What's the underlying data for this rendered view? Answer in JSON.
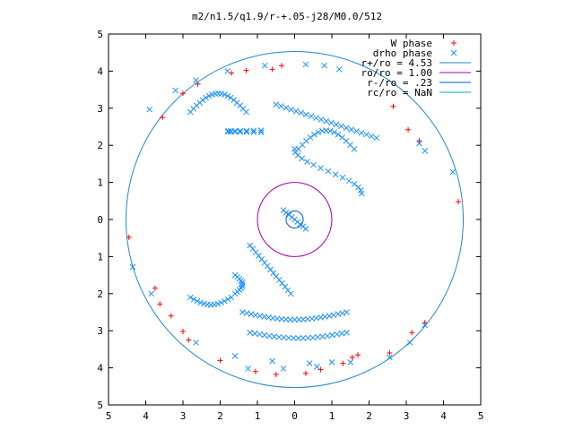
{
  "chart_data": {
    "type": "scatter",
    "title": "m2/n1.5/q1.9/r-+.05-j28/M0.0/512",
    "xlim": [
      -5,
      5
    ],
    "ylim": [
      -5,
      5
    ],
    "x_ticks": [
      -5,
      -4,
      -3,
      -2,
      -1,
      0,
      1,
      2,
      3,
      4,
      5
    ],
    "y_ticks": [
      -5,
      -4,
      -3,
      -2,
      -1,
      0,
      1,
      2,
      3,
      4,
      5
    ],
    "x_tick_labels": [
      "5",
      "4",
      "3",
      "2",
      "1",
      "0",
      "1",
      "2",
      "3",
      "4",
      "5"
    ],
    "y_tick_labels": [
      "5",
      "4",
      "3",
      "2",
      "1",
      "0",
      "1",
      "2",
      "3",
      "4",
      "5"
    ],
    "grid": false,
    "legend_position": "top-right",
    "series": [
      {
        "name": "W phase",
        "marker": "plus",
        "color": "#ff0000",
        "points": [
          [
            -4.45,
            -0.48
          ],
          [
            -3.75,
            -1.85
          ],
          [
            -3.62,
            -2.28
          ],
          [
            -3.32,
            -2.6
          ],
          [
            -3.0,
            -3.02
          ],
          [
            -2.85,
            -3.25
          ],
          [
            -2.0,
            -3.8
          ],
          [
            -1.05,
            -4.1
          ],
          [
            -0.5,
            -4.18
          ],
          [
            0.3,
            -4.15
          ],
          [
            0.7,
            -4.05
          ],
          [
            1.3,
            -3.88
          ],
          [
            1.55,
            -3.72
          ],
          [
            1.7,
            -3.65
          ],
          [
            -3.55,
            2.75
          ],
          [
            -3.0,
            3.4
          ],
          [
            -2.6,
            3.65
          ],
          [
            -1.7,
            3.95
          ],
          [
            -1.3,
            4.02
          ],
          [
            -0.6,
            4.05
          ],
          [
            -0.35,
            4.15
          ],
          [
            2.65,
            3.05
          ],
          [
            3.05,
            2.42
          ],
          [
            3.35,
            2.12
          ],
          [
            4.4,
            0.48
          ],
          [
            3.5,
            -2.78
          ],
          [
            3.15,
            -3.05
          ],
          [
            2.55,
            -3.6
          ]
        ]
      },
      {
        "name": "drho phase",
        "marker": "x",
        "color": "#1e90ff",
        "points": [
          [
            -3.9,
            2.97
          ],
          [
            -3.2,
            3.48
          ],
          [
            -2.65,
            3.75
          ],
          [
            -1.8,
            4.0
          ],
          [
            -0.8,
            4.15
          ],
          [
            0.3,
            4.18
          ],
          [
            0.8,
            4.15
          ],
          [
            1.2,
            4.05
          ],
          [
            3.35,
            2.05
          ],
          [
            3.5,
            1.85
          ],
          [
            4.25,
            1.28
          ],
          [
            -4.35,
            -1.28
          ],
          [
            -3.85,
            -2.0
          ],
          [
            -2.65,
            -3.32
          ],
          [
            -1.6,
            -3.68
          ],
          [
            -0.6,
            -3.82
          ],
          [
            0.4,
            -3.88
          ],
          [
            1.0,
            -3.85
          ],
          [
            -1.25,
            -4.02
          ],
          [
            -0.3,
            -4.02
          ],
          [
            0.6,
            -3.97
          ],
          [
            1.5,
            -3.85
          ],
          [
            2.55,
            -3.72
          ],
          [
            3.1,
            -3.32
          ],
          [
            3.5,
            -2.85
          ]
        ]
      }
    ],
    "circles": [
      {
        "name": "r+/ro = 4.53",
        "radius": 4.53,
        "color": "#2288cc"
      },
      {
        "name": "ro/ro = 1.00",
        "radius": 1.0,
        "color": "#aa00aa"
      },
      {
        "name": "r-/ro = .23",
        "radius": 0.23,
        "color": "#0055cc"
      },
      {
        "name": "rc/ro = NaN",
        "radius": null,
        "color": "#00aacc"
      }
    ],
    "legend": [
      {
        "label": "W phase",
        "kind": "point-plus",
        "color": "#ff0000"
      },
      {
        "label": "drho phase",
        "kind": "point-x",
        "color": "#1e90ff"
      },
      {
        "label": "r+/ro = 4.53",
        "kind": "line",
        "color": "#2288cc"
      },
      {
        "label": "ro/ro = 1.00",
        "kind": "line",
        "color": "#aa00aa"
      },
      {
        "label": "r-/ro = .23",
        "kind": "line",
        "color": "#0055cc"
      },
      {
        "label": "rc/ro = NaN",
        "kind": "line",
        "color": "#00aacc"
      }
    ],
    "spiral_structure": {
      "description_free": true,
      "inner_arm_color": "#1e90ff",
      "outer_edge_color": "#ff0000"
    }
  }
}
